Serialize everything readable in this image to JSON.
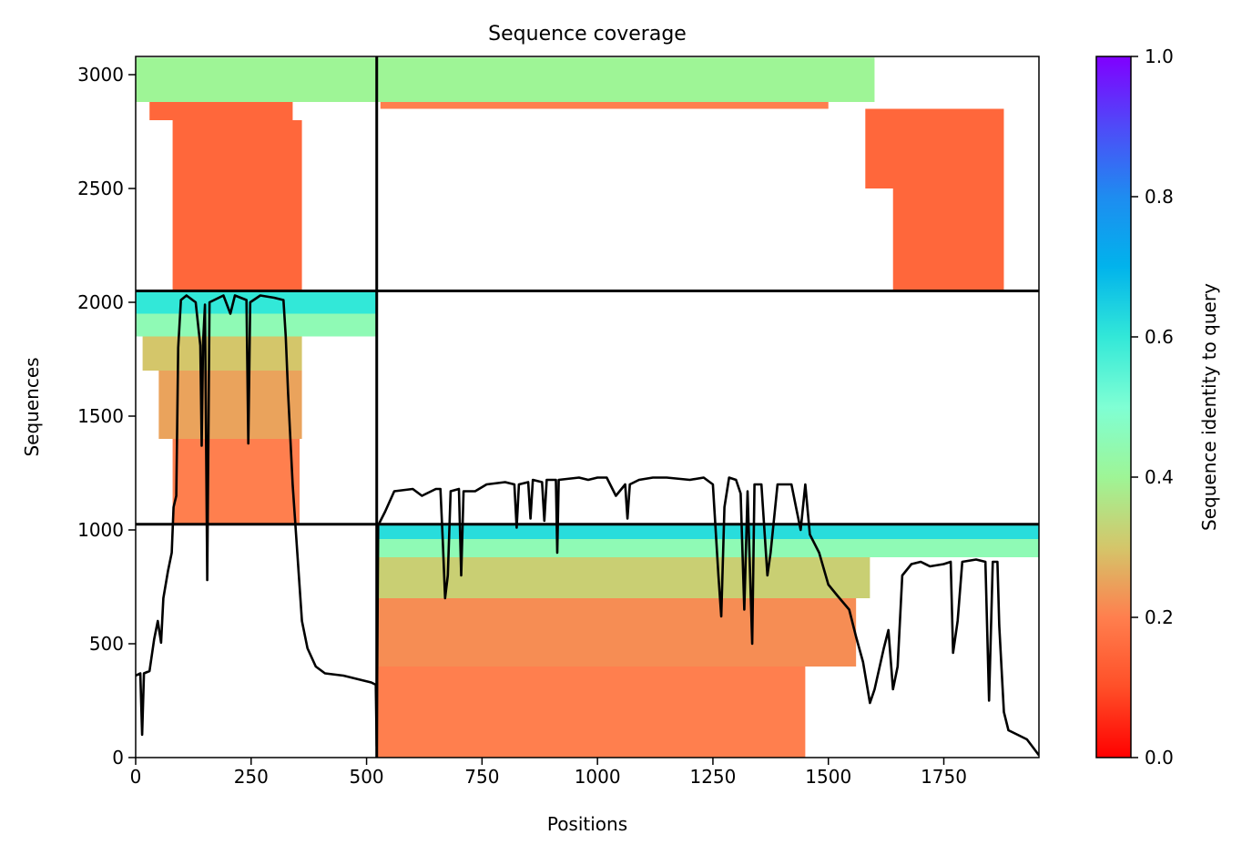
{
  "chart_data": {
    "type": "heatmap",
    "title": "Sequence coverage",
    "xlabel": "Positions",
    "ylabel": "Sequences",
    "xlim": [
      0,
      1956
    ],
    "ylim": [
      0,
      3080
    ],
    "xticks": [
      0,
      250,
      500,
      750,
      1000,
      1250,
      1500,
      1750
    ],
    "yticks": [
      0,
      500,
      1000,
      1500,
      2000,
      2500,
      3000
    ],
    "colorbar": {
      "label": "Sequence identity to query",
      "range": [
        0,
        1
      ],
      "ticks": [
        0.0,
        0.2,
        0.4,
        0.6,
        0.8,
        1.0
      ],
      "tick_labels": [
        "0.0",
        "0.2",
        "0.4",
        "0.6",
        "0.8",
        "1.0"
      ],
      "colormap": "rainbow_r"
    },
    "grid": false,
    "block_boundaries": {
      "x": [
        522
      ],
      "y": [
        1025,
        2050
      ]
    },
    "coverage_blocks": [
      {
        "x": [
          0,
          522
        ],
        "y": [
          1950,
          2050
        ],
        "identity": 0.6
      },
      {
        "x": [
          0,
          522
        ],
        "y": [
          1850,
          1950
        ],
        "identity": 0.45
      },
      {
        "x": [
          15,
          360
        ],
        "y": [
          1700,
          1850
        ],
        "identity": 0.3
      },
      {
        "x": [
          50,
          360
        ],
        "y": [
          1400,
          1700
        ],
        "identity": 0.25
      },
      {
        "x": [
          80,
          355
        ],
        "y": [
          1030,
          1400
        ],
        "identity": 0.2
      },
      {
        "x": [
          0,
          522
        ],
        "y": [
          2880,
          3075
        ],
        "identity": 0.4
      },
      {
        "x": [
          30,
          340
        ],
        "y": [
          2800,
          2880
        ],
        "identity": 0.15
      },
      {
        "x": [
          80,
          360
        ],
        "y": [
          2050,
          2800
        ],
        "identity": 0.15
      },
      {
        "x": [
          522,
          1600
        ],
        "y": [
          2880,
          3075
        ],
        "identity": 0.4
      },
      {
        "x": [
          530,
          1500
        ],
        "y": [
          2850,
          2880
        ],
        "identity": 0.2
      },
      {
        "x": [
          1580,
          1880
        ],
        "y": [
          2500,
          2850
        ],
        "identity": 0.15
      },
      {
        "x": [
          1640,
          1880
        ],
        "y": [
          2050,
          2500
        ],
        "identity": 0.15
      },
      {
        "x": [
          522,
          1956
        ],
        "y": [
          960,
          1025
        ],
        "identity": 0.62
      },
      {
        "x": [
          522,
          1956
        ],
        "y": [
          880,
          960
        ],
        "identity": 0.45
      },
      {
        "x": [
          522,
          1590
        ],
        "y": [
          700,
          880
        ],
        "identity": 0.32
      },
      {
        "x": [
          522,
          1560
        ],
        "y": [
          400,
          700
        ],
        "identity": 0.22
      },
      {
        "x": [
          522,
          1450
        ],
        "y": [
          0,
          400
        ],
        "identity": 0.2
      }
    ],
    "coverage_line": {
      "name": "",
      "color": "#000000",
      "points": [
        [
          0,
          360
        ],
        [
          10,
          370
        ],
        [
          14,
          100
        ],
        [
          18,
          370
        ],
        [
          30,
          380
        ],
        [
          40,
          520
        ],
        [
          48,
          600
        ],
        [
          55,
          505
        ],
        [
          60,
          700
        ],
        [
          70,
          820
        ],
        [
          78,
          900
        ],
        [
          82,
          1100
        ],
        [
          88,
          1150
        ],
        [
          92,
          1800
        ],
        [
          98,
          2010
        ],
        [
          110,
          2030
        ],
        [
          130,
          2000
        ],
        [
          140,
          1810
        ],
        [
          143,
          1370
        ],
        [
          146,
          1820
        ],
        [
          150,
          1990
        ],
        [
          155,
          780
        ],
        [
          160,
          2000
        ],
        [
          190,
          2030
        ],
        [
          205,
          1950
        ],
        [
          215,
          2030
        ],
        [
          240,
          2010
        ],
        [
          244,
          1380
        ],
        [
          248,
          2000
        ],
        [
          270,
          2030
        ],
        [
          300,
          2020
        ],
        [
          320,
          2010
        ],
        [
          325,
          1850
        ],
        [
          330,
          1600
        ],
        [
          340,
          1200
        ],
        [
          350,
          900
        ],
        [
          360,
          600
        ],
        [
          372,
          480
        ],
        [
          390,
          400
        ],
        [
          410,
          370
        ],
        [
          450,
          360
        ],
        [
          490,
          340
        ],
        [
          510,
          330
        ],
        [
          520,
          320
        ],
        [
          522,
          50
        ],
        [
          525,
          1020
        ],
        [
          540,
          1080
        ],
        [
          560,
          1170
        ],
        [
          600,
          1180
        ],
        [
          620,
          1150
        ],
        [
          650,
          1180
        ],
        [
          660,
          1180
        ],
        [
          665,
          950
        ],
        [
          670,
          700
        ],
        [
          676,
          800
        ],
        [
          682,
          1170
        ],
        [
          700,
          1180
        ],
        [
          705,
          800
        ],
        [
          710,
          1170
        ],
        [
          735,
          1170
        ],
        [
          760,
          1200
        ],
        [
          800,
          1210
        ],
        [
          820,
          1200
        ],
        [
          825,
          1010
        ],
        [
          830,
          1200
        ],
        [
          850,
          1210
        ],
        [
          855,
          1050
        ],
        [
          860,
          1220
        ],
        [
          880,
          1210
        ],
        [
          885,
          1040
        ],
        [
          890,
          1220
        ],
        [
          910,
          1220
        ],
        [
          913,
          900
        ],
        [
          916,
          1220
        ],
        [
          960,
          1230
        ],
        [
          980,
          1220
        ],
        [
          1000,
          1230
        ],
        [
          1020,
          1230
        ],
        [
          1040,
          1150
        ],
        [
          1060,
          1200
        ],
        [
          1065,
          1050
        ],
        [
          1070,
          1200
        ],
        [
          1090,
          1220
        ],
        [
          1120,
          1230
        ],
        [
          1150,
          1230
        ],
        [
          1200,
          1220
        ],
        [
          1230,
          1230
        ],
        [
          1250,
          1200
        ],
        [
          1262,
          800
        ],
        [
          1268,
          620
        ],
        [
          1275,
          1100
        ],
        [
          1285,
          1230
        ],
        [
          1300,
          1220
        ],
        [
          1310,
          1160
        ],
        [
          1318,
          650
        ],
        [
          1325,
          1170
        ],
        [
          1335,
          500
        ],
        [
          1340,
          1200
        ],
        [
          1355,
          1200
        ],
        [
          1368,
          800
        ],
        [
          1375,
          900
        ],
        [
          1390,
          1200
        ],
        [
          1420,
          1200
        ],
        [
          1430,
          1100
        ],
        [
          1440,
          1000
        ],
        [
          1450,
          1200
        ],
        [
          1460,
          980
        ],
        [
          1480,
          900
        ],
        [
          1500,
          760
        ],
        [
          1520,
          710
        ],
        [
          1545,
          650
        ],
        [
          1560,
          530
        ],
        [
          1575,
          420
        ],
        [
          1590,
          240
        ],
        [
          1600,
          300
        ],
        [
          1620,
          480
        ],
        [
          1630,
          560
        ],
        [
          1640,
          300
        ],
        [
          1650,
          400
        ],
        [
          1660,
          800
        ],
        [
          1680,
          850
        ],
        [
          1700,
          860
        ],
        [
          1720,
          840
        ],
        [
          1750,
          850
        ],
        [
          1765,
          860
        ],
        [
          1770,
          460
        ],
        [
          1780,
          600
        ],
        [
          1790,
          860
        ],
        [
          1820,
          870
        ],
        [
          1840,
          860
        ],
        [
          1848,
          250
        ],
        [
          1856,
          860
        ],
        [
          1866,
          860
        ],
        [
          1870,
          580
        ],
        [
          1880,
          200
        ],
        [
          1890,
          120
        ],
        [
          1910,
          100
        ],
        [
          1930,
          80
        ],
        [
          1945,
          40
        ],
        [
          1956,
          10
        ]
      ]
    }
  }
}
